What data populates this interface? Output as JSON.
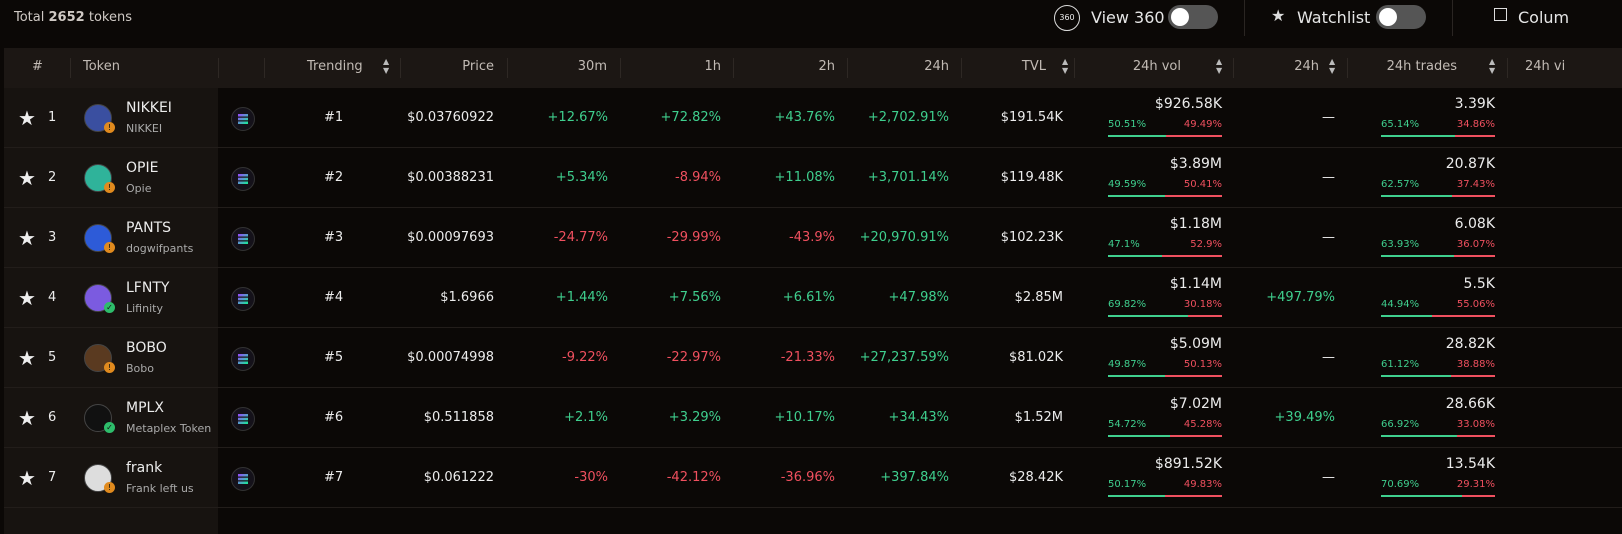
{
  "header": {
    "total_label": "Total",
    "total_count": "2652",
    "total_unit": "tokens",
    "toggles": [
      "View 360",
      "Watchlist"
    ],
    "columns_button": "Colum"
  },
  "table": {
    "columns": [
      "#",
      "Token",
      "Trending",
      "Price",
      "30m",
      "1h",
      "2h",
      "24h",
      "TVL",
      "24h vol",
      "24h",
      "24h trades",
      "24h vi"
    ],
    "rows": [
      {
        "rank": "1",
        "symbol": "NIKKEI",
        "name": "NIKKEI",
        "badge": "warn",
        "trending": "#1",
        "price": "$0.03760922",
        "m30": "+12.67%",
        "h1": "+72.82%",
        "h2": "+43.76%",
        "h24": "+2,702.91%",
        "tvl": "$191.54K",
        "vol": "$926.58K",
        "vol_buy": "50.51%",
        "vol_sell": "49.49%",
        "vol_change": "—",
        "trades": "3.39K",
        "trades_buy": "65.14%",
        "trades_sell": "34.86%"
      },
      {
        "rank": "2",
        "symbol": "OPIE",
        "name": "Opie",
        "badge": "warn",
        "trending": "#2",
        "price": "$0.00388231",
        "m30": "+5.34%",
        "h1": "-8.94%",
        "h2": "+11.08%",
        "h24": "+3,701.14%",
        "tvl": "$119.48K",
        "vol": "$3.89M",
        "vol_buy": "49.59%",
        "vol_sell": "50.41%",
        "vol_change": "—",
        "trades": "20.87K",
        "trades_buy": "62.57%",
        "trades_sell": "37.43%"
      },
      {
        "rank": "3",
        "symbol": "PANTS",
        "name": "dogwifpants",
        "badge": "warn",
        "trending": "#3",
        "price": "$0.00097693",
        "m30": "-24.77%",
        "h1": "-29.99%",
        "h2": "-43.9%",
        "h24": "+20,970.91%",
        "tvl": "$102.23K",
        "vol": "$1.18M",
        "vol_buy": "47.1%",
        "vol_sell": "52.9%",
        "vol_change": "—",
        "trades": "6.08K",
        "trades_buy": "63.93%",
        "trades_sell": "36.07%"
      },
      {
        "rank": "4",
        "symbol": "LFNTY",
        "name": "Lifinity",
        "badge": "check",
        "trending": "#4",
        "price": "$1.6966",
        "m30": "+1.44%",
        "h1": "+7.56%",
        "h2": "+6.61%",
        "h24": "+47.98%",
        "tvl": "$2.85M",
        "vol": "$1.14M",
        "vol_buy": "69.82%",
        "vol_sell": "30.18%",
        "vol_change": "+497.79%",
        "trades": "5.5K",
        "trades_buy": "44.94%",
        "trades_sell": "55.06%"
      },
      {
        "rank": "5",
        "symbol": "BOBO",
        "name": "Bobo",
        "badge": "warn",
        "trending": "#5",
        "price": "$0.00074998",
        "m30": "-9.22%",
        "h1": "-22.97%",
        "h2": "-21.33%",
        "h24": "+27,237.59%",
        "tvl": "$81.02K",
        "vol": "$5.09M",
        "vol_buy": "49.87%",
        "vol_sell": "50.13%",
        "vol_change": "—",
        "trades": "28.82K",
        "trades_buy": "61.12%",
        "trades_sell": "38.88%"
      },
      {
        "rank": "6",
        "symbol": "MPLX",
        "name": "Metaplex Token",
        "badge": "check",
        "trending": "#6",
        "price": "$0.511858",
        "m30": "+2.1%",
        "h1": "+3.29%",
        "h2": "+10.17%",
        "h24": "+34.43%",
        "tvl": "$1.52M",
        "vol": "$7.02M",
        "vol_buy": "54.72%",
        "vol_sell": "45.28%",
        "vol_change": "+39.49%",
        "trades": "28.66K",
        "trades_buy": "66.92%",
        "trades_sell": "33.08%"
      },
      {
        "rank": "7",
        "symbol": "frank",
        "name": "Frank left us",
        "badge": "warn",
        "trending": "#7",
        "price": "$0.061222",
        "m30": "-30%",
        "h1": "-42.12%",
        "h2": "-36.96%",
        "h24": "+397.84%",
        "tvl": "$28.42K",
        "vol": "$891.52K",
        "vol_buy": "50.17%",
        "vol_sell": "49.83%",
        "vol_change": "—",
        "trades": "13.54K",
        "trades_buy": "70.69%",
        "trades_sell": "29.31%"
      }
    ]
  }
}
